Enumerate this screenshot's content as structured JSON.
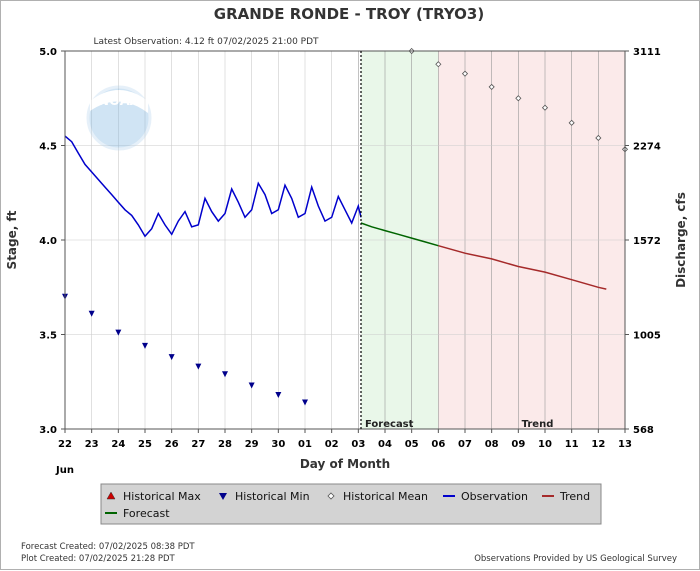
{
  "chart_data": {
    "type": "line",
    "title": "GRANDE RONDE - TROY  (TRYO3)",
    "subtitle": "Latest Observation: 4.12 ft 07/02/2025 21:00 PDT",
    "xlabel": "Day of Month",
    "ylabel_left": "Stage, ft",
    "ylabel_right": "Discharge, cfs",
    "month_label": "Jun",
    "x_ticks": [
      "22",
      "23",
      "24",
      "25",
      "26",
      "27",
      "28",
      "29",
      "30",
      "01",
      "02",
      "03",
      "04",
      "05",
      "06",
      "07",
      "08",
      "09",
      "10",
      "11",
      "12",
      "13"
    ],
    "y_ticks_left": [
      "3.0",
      "3.5",
      "4.0",
      "4.5",
      "5.0"
    ],
    "y_ticks_right": [
      "568",
      "1005",
      "1572",
      "2274",
      "3111"
    ],
    "ylim": [
      3.0,
      5.0
    ],
    "xlim": [
      0,
      21
    ],
    "regions": [
      {
        "name": "Forecast",
        "start": 11.1,
        "end": 14,
        "color": "#e9f7e9"
      },
      {
        "name": "Trend",
        "start": 14,
        "end": 21,
        "color": "#fbeaea"
      }
    ],
    "series": [
      {
        "name": "Observation",
        "color": "#0000cc",
        "x": [
          0,
          0.25,
          0.5,
          0.75,
          1,
          1.25,
          1.5,
          1.75,
          2,
          2.25,
          2.5,
          2.75,
          3,
          3.25,
          3.5,
          3.75,
          4,
          4.25,
          4.5,
          4.75,
          5,
          5.25,
          5.5,
          5.75,
          6,
          6.25,
          6.5,
          6.75,
          7,
          7.25,
          7.5,
          7.75,
          8,
          8.25,
          8.5,
          8.75,
          9,
          9.25,
          9.5,
          9.75,
          10,
          10.25,
          10.5,
          10.75,
          11,
          11.1
        ],
        "y": [
          4.55,
          4.52,
          4.46,
          4.4,
          4.36,
          4.32,
          4.28,
          4.24,
          4.2,
          4.16,
          4.13,
          4.08,
          4.02,
          4.06,
          4.14,
          4.08,
          4.03,
          4.1,
          4.15,
          4.07,
          4.08,
          4.22,
          4.15,
          4.1,
          4.14,
          4.27,
          4.2,
          4.12,
          4.16,
          4.3,
          4.24,
          4.14,
          4.16,
          4.29,
          4.22,
          4.12,
          4.14,
          4.28,
          4.18,
          4.1,
          4.12,
          4.23,
          4.16,
          4.09,
          4.18,
          4.12
        ]
      },
      {
        "name": "Forecast",
        "color": "#006400",
        "x": [
          11.1,
          11.5,
          12,
          12.5,
          13,
          13.5,
          14
        ],
        "y": [
          4.09,
          4.07,
          4.05,
          4.03,
          4.01,
          3.99,
          3.97
        ]
      },
      {
        "name": "Trend",
        "color": "#a52a2a",
        "x": [
          14,
          15,
          16,
          17,
          18,
          19,
          20,
          20.3
        ],
        "y": [
          3.97,
          3.93,
          3.9,
          3.86,
          3.83,
          3.79,
          3.75,
          3.74
        ]
      },
      {
        "name": "Historical Min",
        "color": "#00008b",
        "x": [
          0,
          1,
          2,
          3,
          4,
          5,
          6,
          7,
          8,
          9,
          10
        ],
        "y": [
          3.7,
          3.61,
          3.51,
          3.44,
          3.38,
          3.33,
          3.29,
          3.23,
          3.18,
          3.14,
          null
        ]
      },
      {
        "name": "Historical Mean",
        "color": "#555555",
        "x": [
          13,
          14,
          15,
          16,
          17,
          18,
          19,
          20,
          21
        ],
        "y": [
          5.0,
          4.93,
          4.88,
          4.81,
          4.75,
          4.7,
          4.62,
          4.54,
          4.48
        ]
      }
    ],
    "legend": [
      {
        "label": "Historical Max",
        "marker": "triangle-up",
        "color": "#cc0000"
      },
      {
        "label": "Historical Min",
        "marker": "triangle-down",
        "color": "#00008b"
      },
      {
        "label": "Historical Mean",
        "marker": "diamond",
        "color": "#555555"
      },
      {
        "label": "Observation",
        "marker": "line",
        "color": "#0000cc"
      },
      {
        "label": "Trend",
        "marker": "line",
        "color": "#a52a2a"
      },
      {
        "label": "Forecast",
        "marker": "line",
        "color": "#006400"
      }
    ],
    "legend_placement": "bottom",
    "grid": true
  },
  "footer": {
    "forecast_created": "Forecast Created: 07/02/2025 08:38 PDT",
    "plot_created": "Plot Created: 07/02/2025 21:28 PDT",
    "provider": "Observations Provided by US Geological Survey"
  },
  "logo_text": "NOAA"
}
